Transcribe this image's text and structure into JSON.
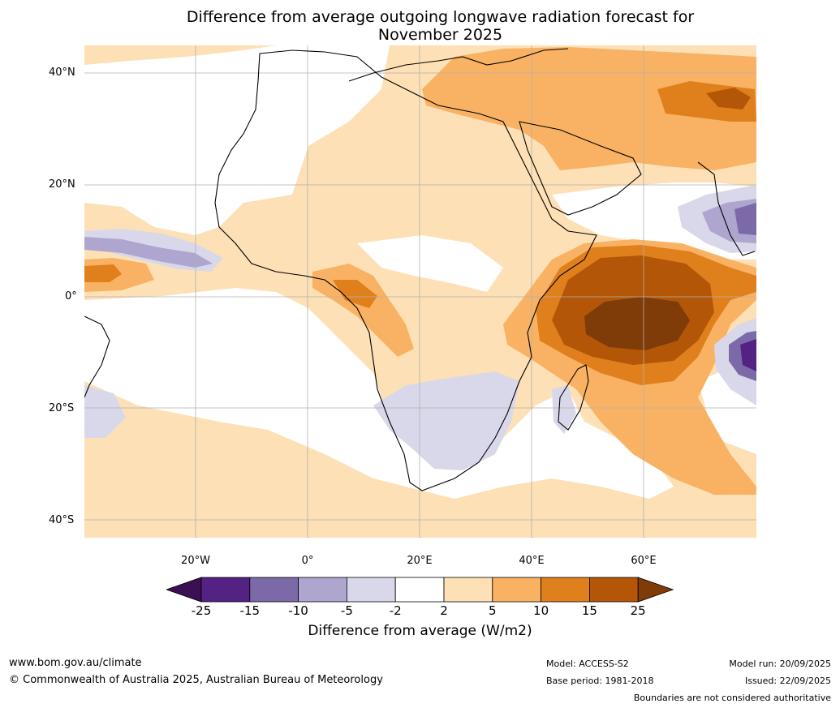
{
  "title_line1": "Difference from average outgoing longwave radiation forecast for",
  "title_line2": "November 2025",
  "lat_labels": [
    "40°N",
    "20°N",
    "0°",
    "20°S",
    "40°S"
  ],
  "lon_labels": [
    "20°W",
    "0°",
    "20°E",
    "40°E",
    "60°E"
  ],
  "colorbar": {
    "ticks": [
      "-25",
      "-15",
      "-10",
      "-5",
      "-2",
      "2",
      "5",
      "10",
      "15",
      "25"
    ],
    "colors": [
      "#3b0f52",
      "#542283",
      "#7c6aa8",
      "#aea6cf",
      "#d9d8ea",
      "#ffffff",
      "#fde0b5",
      "#f9b263",
      "#e0801c",
      "#b45608",
      "#7f3b08"
    ],
    "label": "Difference from average (W/m2)"
  },
  "footer": {
    "url": "www.bom.gov.au/climate",
    "copyright": "© Commonwealth of Australia 2025, Australian Bureau of Meteorology",
    "model": "Model: ACCESS-S2",
    "base_period": "Base period: 1981-2018",
    "model_run": "Model run: 20/09/2025",
    "issued": "Issued: 22/09/2025",
    "disclaimer": "Boundaries are not considered authoritative"
  }
}
